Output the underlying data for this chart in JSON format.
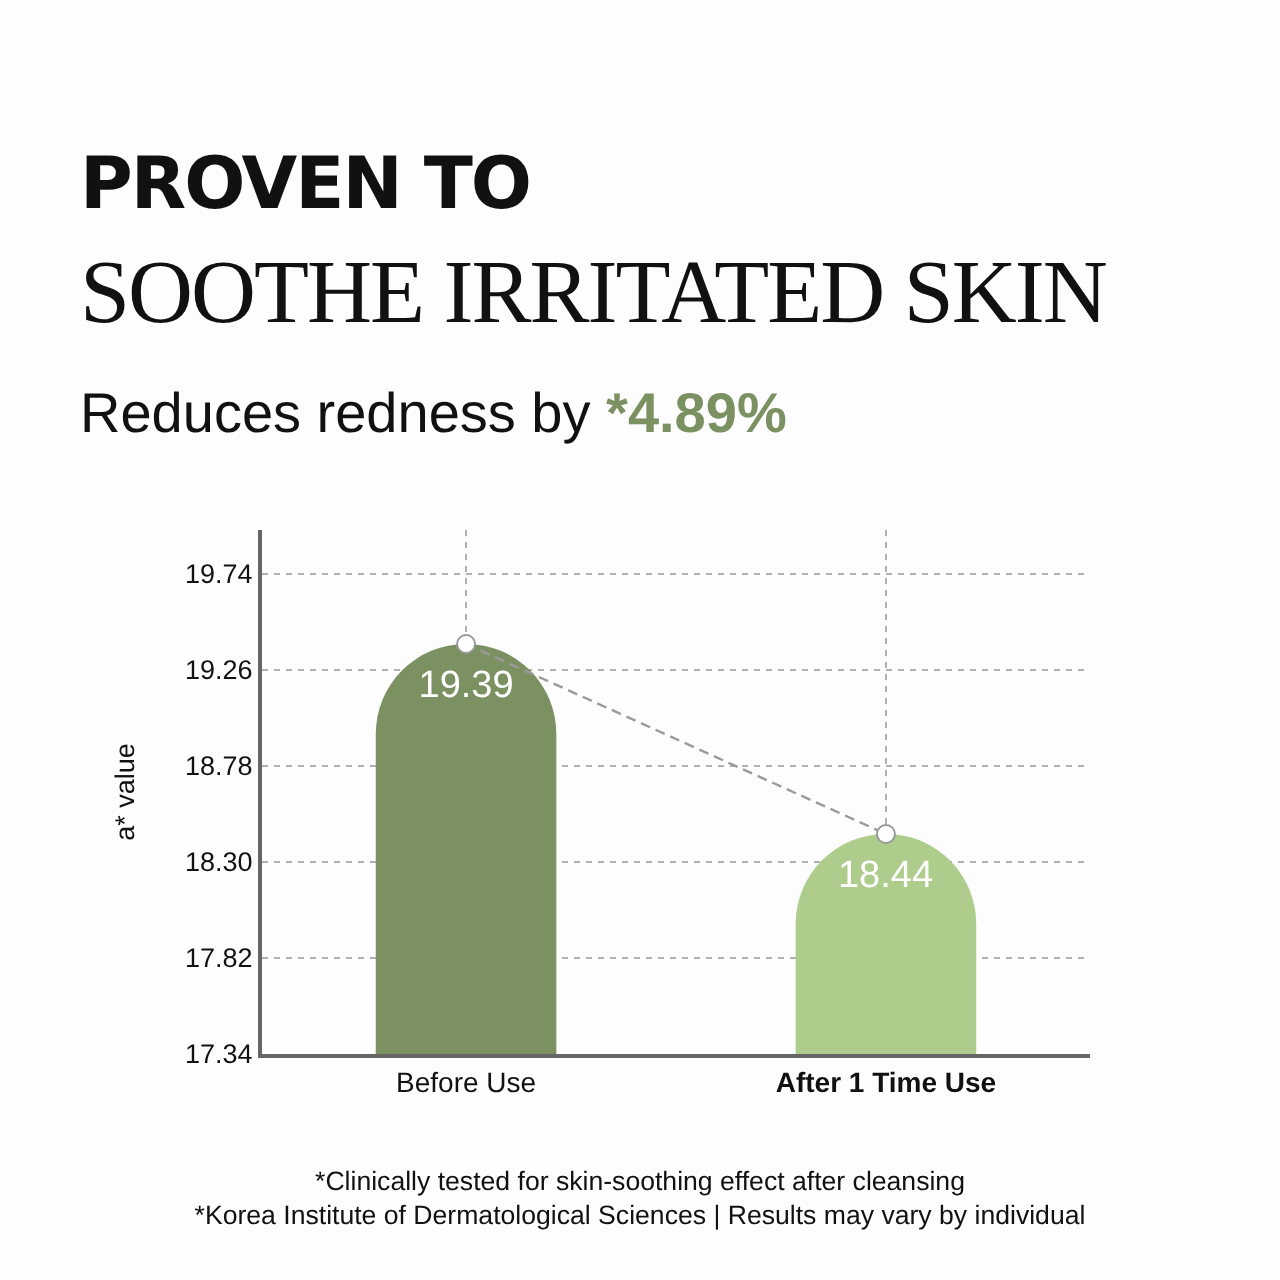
{
  "chart_data": {
    "type": "bar",
    "title": "PROVEN TO\nSOOTHE IRRITATED SKIN",
    "subtitle": "Reduces redness by *4.89%",
    "ylabel": "a* value",
    "categories": [
      "Before Use",
      "After 1 Time Use"
    ],
    "series": [
      {
        "colors": [
          "#7b9161",
          "#aecd8c"
        ],
        "values": [
          19.39,
          18.44
        ],
        "value_labels": [
          "19.39",
          "18.44"
        ]
      },
      {
        "type": "line",
        "color": "#9a9a9a",
        "values": [
          19.39,
          18.44
        ],
        "marker": "circle",
        "line_style": "dashed"
      }
    ],
    "ylim": [
      17.34,
      19.96
    ],
    "yticks": [
      17.34,
      17.82,
      {
        "value": 18.3,
        "label": "18.30"
      },
      18.78,
      19.26,
      19.74
    ],
    "grid": true,
    "annotations": [
      "*Clinically tested for skin-soothing effect after cleansing",
      "*Korea Institute of Dermatological Sciences | Results may vary by individual"
    ]
  }
}
